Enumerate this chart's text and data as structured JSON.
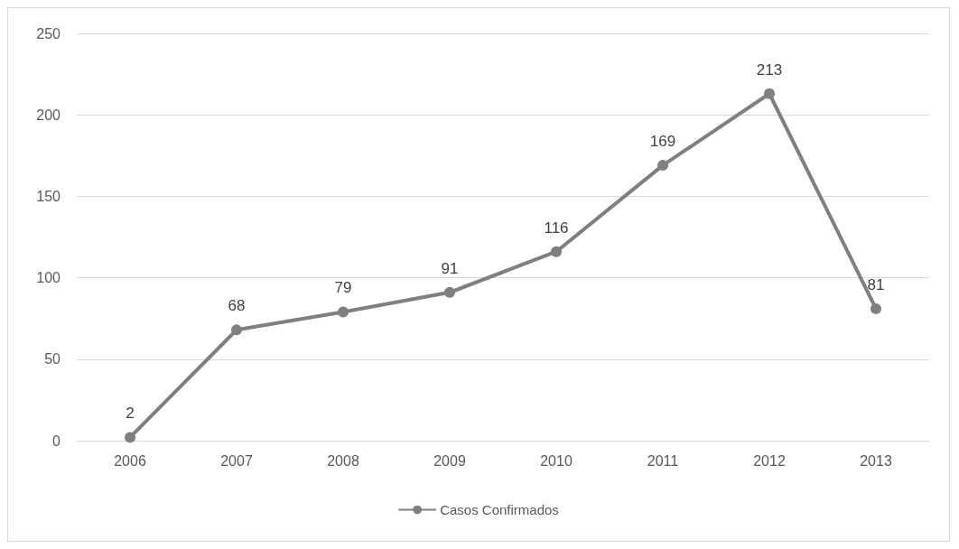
{
  "chart_data": {
    "type": "line",
    "categories": [
      "2006",
      "2007",
      "2008",
      "2009",
      "2010",
      "2011",
      "2012",
      "2013"
    ],
    "series": [
      {
        "name": "Casos Confirmados",
        "color": "#7f7f7f",
        "values": [
          2,
          68,
          79,
          91,
          116,
          169,
          213,
          81
        ]
      }
    ],
    "ylim": [
      0,
      250
    ],
    "yticks": [
      0,
      50,
      100,
      150,
      200,
      250
    ],
    "grid": "y",
    "legend": "bottom",
    "marker": "circle",
    "line_style": "solid",
    "data_labels": true
  }
}
